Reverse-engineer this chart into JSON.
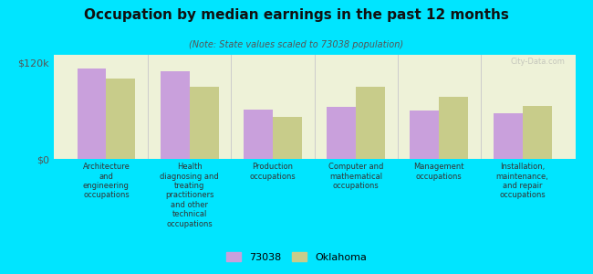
{
  "title": "Occupation by median earnings in the past 12 months",
  "subtitle": "(Note: State values scaled to 73038 population)",
  "categories": [
    "Architecture\nand\nengineering\noccupations",
    "Health\ndiagnosing and\ntreating\npractitioners\nand other\ntechnical\noccupations",
    "Production\noccupations",
    "Computer and\nmathematical\noccupations",
    "Management\noccupations",
    "Installation,\nmaintenance,\nand repair\noccupations"
  ],
  "values_73038": [
    113000,
    110000,
    62000,
    65000,
    60000,
    57000
  ],
  "values_oklahoma": [
    100000,
    90000,
    52000,
    90000,
    78000,
    66000
  ],
  "ylim": [
    0,
    130000
  ],
  "yticks": [
    0,
    120000
  ],
  "ytick_labels": [
    "$0",
    "$120k"
  ],
  "bar_color_73038": "#c9a0dc",
  "bar_color_oklahoma": "#c8cc8a",
  "background_color": "#00e5ff",
  "plot_bg_color": "#eef2d8",
  "legend_labels": [
    "73038",
    "Oklahoma"
  ],
  "watermark": "City-Data.com",
  "bar_width": 0.35,
  "title_fontsize": 11,
  "subtitle_fontsize": 7,
  "xlabel_fontsize": 6,
  "legend_fontsize": 8
}
